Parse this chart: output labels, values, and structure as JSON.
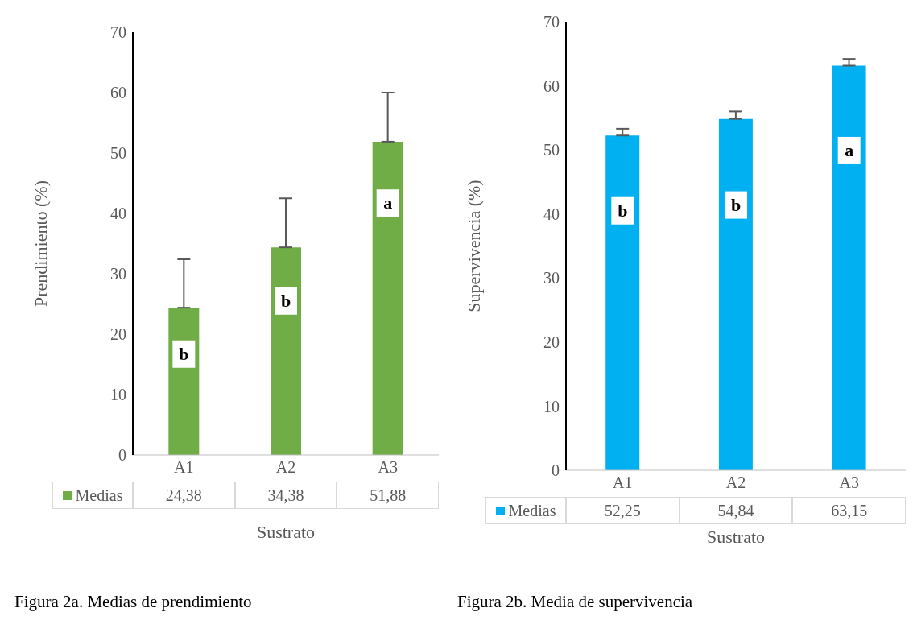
{
  "chart_data": [
    {
      "type": "bar",
      "categories": [
        "A1",
        "A2",
        "A3"
      ],
      "xlabel": "Sustrato",
      "ylabel": "Prendimiento (%)",
      "ylim": [
        0,
        70
      ],
      "yticks": [
        0,
        10,
        20,
        30,
        40,
        50,
        60,
        70
      ],
      "legend": "bottom",
      "data_labels": true,
      "series": [
        {
          "name": "Medias",
          "color": "#70ad47",
          "values": [
            24.38,
            34.38,
            51.88
          ],
          "value_labels": [
            "24,38",
            "34,38",
            "51,88"
          ],
          "errors": [
            [
              24.38,
              32.4
            ],
            [
              34.38,
              42.5
            ],
            [
              51.88,
              60
            ]
          ]
        }
      ],
      "annotations": [
        {
          "text": "b",
          "x": "A1",
          "y": 16.7
        },
        {
          "text": "b",
          "x": "A2",
          "y": 25.5
        },
        {
          "text": "a",
          "x": "A3",
          "y": 41.7
        },
        "Figura 2a. Medias de prendimiento"
      ]
    },
    {
      "type": "bar",
      "categories": [
        "A1",
        "A2",
        "A3"
      ],
      "xlabel": "Sustrato",
      "ylabel": "Supervivencia (%)",
      "ylim": [
        0,
        70
      ],
      "yticks": [
        0,
        10,
        20,
        30,
        40,
        50,
        60,
        70
      ],
      "legend": "bottom",
      "data_labels": true,
      "series": [
        {
          "name": "Medias",
          "color": "#00b0f0",
          "values": [
            52.25,
            54.84,
            63.15
          ],
          "value_labels": [
            "52,25",
            "54,84",
            "63,15"
          ],
          "errors": [
            [
              52.25,
              53.3
            ],
            [
              54.84,
              56
            ],
            [
              63.15,
              64.2
            ]
          ]
        }
      ],
      "annotations": [
        {
          "text": "b",
          "x": "A1",
          "y": 40.5
        },
        {
          "text": "b",
          "x": "A2",
          "y": 41.4
        },
        {
          "text": "a",
          "x": "A3",
          "y": 49.9
        },
        "Figura 2b. Media de supervivencia"
      ]
    }
  ]
}
